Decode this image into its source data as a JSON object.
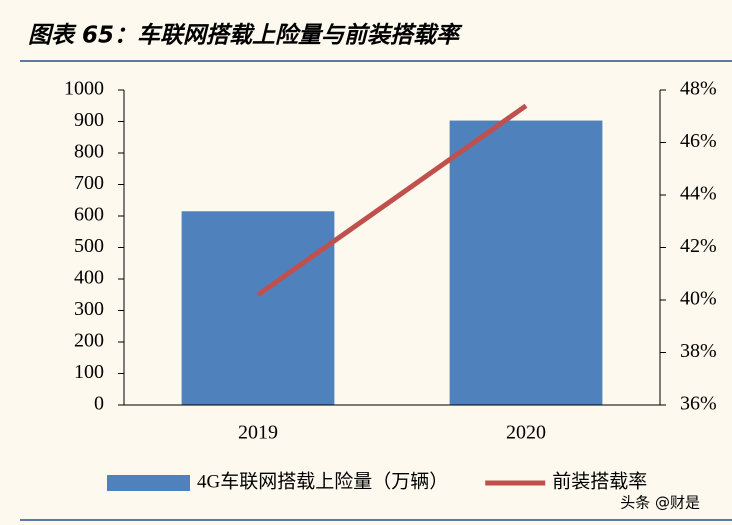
{
  "chart_data": {
    "type": "bar",
    "title": "图表 65：车联网搭载上险量与前装搭载率",
    "categories": [
      "2019",
      "2020"
    ],
    "series": [
      {
        "name": "4G车联网搭载上险量（万辆）",
        "type": "bar",
        "color": "#4f81bd",
        "values": [
          615,
          903
        ]
      },
      {
        "name": "前装搭载率",
        "type": "line",
        "axis": "y2",
        "color": "#c0504d",
        "values": [
          40.2,
          47.4
        ]
      }
    ],
    "ylim": [
      0,
      1000
    ],
    "yticks": [
      0,
      100,
      200,
      300,
      400,
      500,
      600,
      700,
      800,
      900,
      1000
    ],
    "y2lim": [
      36,
      48
    ],
    "y2ticks": [
      {
        "value": 36,
        "label": "36%"
      },
      {
        "value": 38,
        "label": "38%"
      },
      {
        "value": 40,
        "label": "40%"
      },
      {
        "value": 42,
        "label": "42%"
      },
      {
        "value": 44,
        "label": "44%"
      },
      {
        "value": 46,
        "label": "46%"
      },
      {
        "value": 48,
        "label": "48%"
      }
    ],
    "grid": false,
    "legend": "bottom",
    "watermark": "头条 @财是"
  }
}
